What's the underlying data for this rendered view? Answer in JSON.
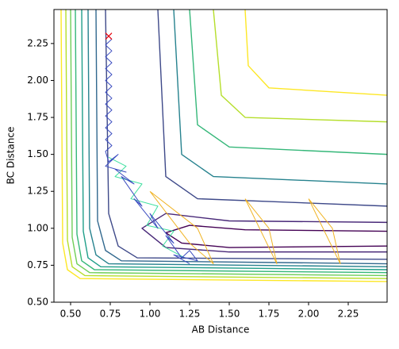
{
  "chart_data": {
    "type": "contour",
    "xlabel": "AB Distance",
    "ylabel": "BC Distance",
    "xlim": [
      0.395,
      2.495
    ],
    "ylim": [
      0.5,
      2.48
    ],
    "xticks": [
      {
        "value": 0.5,
        "label": "0.50"
      },
      {
        "value": 0.75,
        "label": "0.75"
      },
      {
        "value": 1.0,
        "label": "1.00"
      },
      {
        "value": 1.25,
        "label": "1.25"
      },
      {
        "value": 1.5,
        "label": "1.50"
      },
      {
        "value": 1.75,
        "label": "1.75"
      },
      {
        "value": 2.0,
        "label": "2.00"
      },
      {
        "value": 2.25,
        "label": "2.25"
      }
    ],
    "yticks": [
      {
        "value": 0.5,
        "label": "0.50"
      },
      {
        "value": 0.75,
        "label": "0.75"
      },
      {
        "value": 1.0,
        "label": "1.00"
      },
      {
        "value": 1.25,
        "label": "1.25"
      },
      {
        "value": 1.5,
        "label": "1.50"
      },
      {
        "value": 1.75,
        "label": "1.75"
      },
      {
        "value": 2.0,
        "label": "2.00"
      },
      {
        "value": 2.25,
        "label": "2.25"
      }
    ],
    "contours": [
      {
        "color": "#fde725",
        "x": [
          0.44,
          0.45,
          0.48,
          0.56,
          2.495
        ],
        "y": [
          2.48,
          0.9,
          0.72,
          0.66,
          0.64
        ]
      },
      {
        "color": "#b5de2b",
        "x": [
          0.47,
          0.48,
          0.51,
          0.59,
          2.495
        ],
        "y": [
          2.48,
          0.92,
          0.74,
          0.68,
          0.66
        ]
      },
      {
        "color": "#6ece58",
        "x": [
          0.5,
          0.51,
          0.54,
          0.62,
          2.495
        ],
        "y": [
          2.48,
          0.94,
          0.76,
          0.7,
          0.68
        ]
      },
      {
        "color": "#35b779",
        "x": [
          0.53,
          0.54,
          0.57,
          0.65,
          2.495
        ],
        "y": [
          2.48,
          0.96,
          0.78,
          0.72,
          0.7
        ]
      },
      {
        "color": "#1f9e89",
        "x": [
          0.57,
          0.58,
          0.61,
          0.69,
          2.495
        ],
        "y": [
          2.48,
          0.98,
          0.8,
          0.74,
          0.72
        ]
      },
      {
        "color": "#26828e",
        "x": [
          0.61,
          0.62,
          0.66,
          0.74,
          2.495
        ],
        "y": [
          2.48,
          1.0,
          0.82,
          0.76,
          0.74
        ]
      },
      {
        "color": "#31688e",
        "x": [
          0.66,
          0.67,
          0.72,
          0.82,
          2.495
        ],
        "y": [
          2.48,
          1.05,
          0.85,
          0.78,
          0.76
        ]
      },
      {
        "color": "#3e4989",
        "x": [
          0.72,
          0.74,
          0.8,
          0.92,
          2.495
        ],
        "y": [
          2.48,
          1.1,
          0.88,
          0.8,
          0.79
        ]
      },
      {
        "color": "#482878",
        "x": [
          2.495,
          1.5,
          1.1,
          0.95,
          1.1,
          1.5,
          2.495
        ],
        "y": [
          0.84,
          0.84,
          0.87,
          1.0,
          1.1,
          1.05,
          1.04
        ]
      },
      {
        "color": "#440154",
        "x": [
          2.495,
          1.5,
          1.2,
          1.1,
          1.25,
          1.6,
          2.495
        ],
        "y": [
          0.88,
          0.87,
          0.9,
          0.97,
          1.02,
          0.99,
          0.98
        ]
      },
      {
        "color": "#fde725",
        "x": [
          1.6,
          1.62,
          1.75,
          2.495
        ],
        "y": [
          2.48,
          2.1,
          1.95,
          1.9
        ]
      },
      {
        "color": "#b5de2b",
        "x": [
          1.4,
          1.45,
          1.6,
          2.495
        ],
        "y": [
          2.48,
          1.9,
          1.75,
          1.72
        ]
      },
      {
        "color": "#35b779",
        "x": [
          1.25,
          1.3,
          1.5,
          2.495
        ],
        "y": [
          2.48,
          1.7,
          1.55,
          1.5
        ]
      },
      {
        "color": "#26828e",
        "x": [
          1.15,
          1.2,
          1.4,
          2.495
        ],
        "y": [
          2.48,
          1.5,
          1.35,
          1.3
        ]
      },
      {
        "color": "#3e4989",
        "x": [
          1.05,
          1.1,
          1.3,
          2.495
        ],
        "y": [
          2.48,
          1.35,
          1.2,
          1.15
        ]
      }
    ],
    "trajectory": {
      "color": "#3b4cc0",
      "x": [
        0.76,
        0.72,
        0.76,
        0.72,
        0.76,
        0.72,
        0.76,
        0.72,
        0.76,
        0.72,
        0.76,
        0.72,
        0.76,
        0.72,
        0.76,
        0.72,
        0.76,
        0.72,
        0.76,
        0.72,
        0.74,
        0.8,
        0.72,
        0.85,
        0.78,
        0.9,
        0.82,
        0.95,
        0.9,
        1.05,
        1.0,
        1.15,
        1.1,
        1.2,
        1.25,
        1.3,
        1.15,
        1.25
      ],
      "y": [
        2.28,
        2.24,
        2.2,
        2.16,
        2.12,
        2.08,
        2.04,
        2.0,
        1.96,
        1.92,
        1.88,
        1.84,
        1.8,
        1.76,
        1.72,
        1.68,
        1.64,
        1.6,
        1.56,
        1.52,
        1.45,
        1.5,
        1.42,
        1.38,
        1.4,
        1.3,
        1.35,
        1.15,
        1.2,
        1.0,
        1.1,
        0.9,
        0.95,
        0.8,
        0.85,
        0.78,
        0.82,
        0.76
      ]
    },
    "trajectory2": {
      "color": "#40e0a0",
      "x": [
        0.74,
        0.85,
        0.78,
        0.95,
        0.88,
        1.05,
        0.98,
        1.15,
        1.08,
        1.22
      ],
      "y": [
        1.48,
        1.42,
        1.35,
        1.3,
        1.2,
        1.15,
        1.02,
        0.98,
        0.88,
        0.8
      ]
    },
    "orbits": {
      "color": "#f0b323",
      "x": [
        1.0,
        1.25,
        1.4,
        1.3,
        1.0,
        null,
        1.6,
        1.8,
        1.75,
        1.6,
        null,
        2.0,
        2.2,
        2.15,
        2.0
      ],
      "y": [
        1.25,
        0.9,
        0.76,
        1.0,
        1.25,
        null,
        1.2,
        0.76,
        1.0,
        1.2,
        null,
        1.2,
        0.76,
        1.0,
        1.2
      ]
    },
    "start": {
      "color": "#e8000b",
      "x": 0.74,
      "y": 2.3
    }
  }
}
